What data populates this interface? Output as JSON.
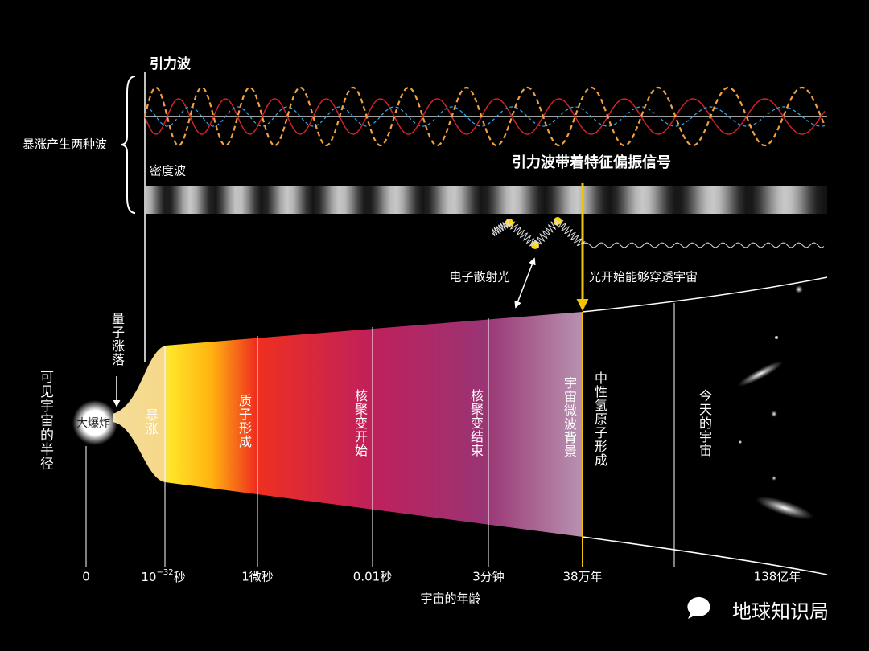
{
  "header": {
    "gravity_wave": "引力波",
    "inflation_two_waves": "暴涨产生两种波",
    "density_wave": "密度波",
    "polarization_signal": "引力波带着特征偏振信号"
  },
  "annotations": {
    "electron_scatter": "电子散射光",
    "light_passes": "光开始能够穿透宇宙",
    "quantum_fluctuation": "量子涨落",
    "visible_radius": "可见宇宙的半径",
    "big_bang": "大爆炸"
  },
  "stages": [
    "暴涨",
    "质子形成",
    "核聚变开始",
    "核聚变结束",
    "宇宙微波背景",
    "中性氢原子形成",
    "今天的宇宙"
  ],
  "timeline": {
    "ticks": [
      {
        "label": "0"
      },
      {
        "base": "10",
        "exp": "−32",
        "unit": "秒"
      },
      {
        "label": "1微秒"
      },
      {
        "label": "0.01秒"
      },
      {
        "label": "3分钟"
      },
      {
        "label": "38万年"
      },
      {
        "label": "138亿年"
      }
    ],
    "axis_label": "宇宙的年龄"
  },
  "watermark": "地球知识局"
}
